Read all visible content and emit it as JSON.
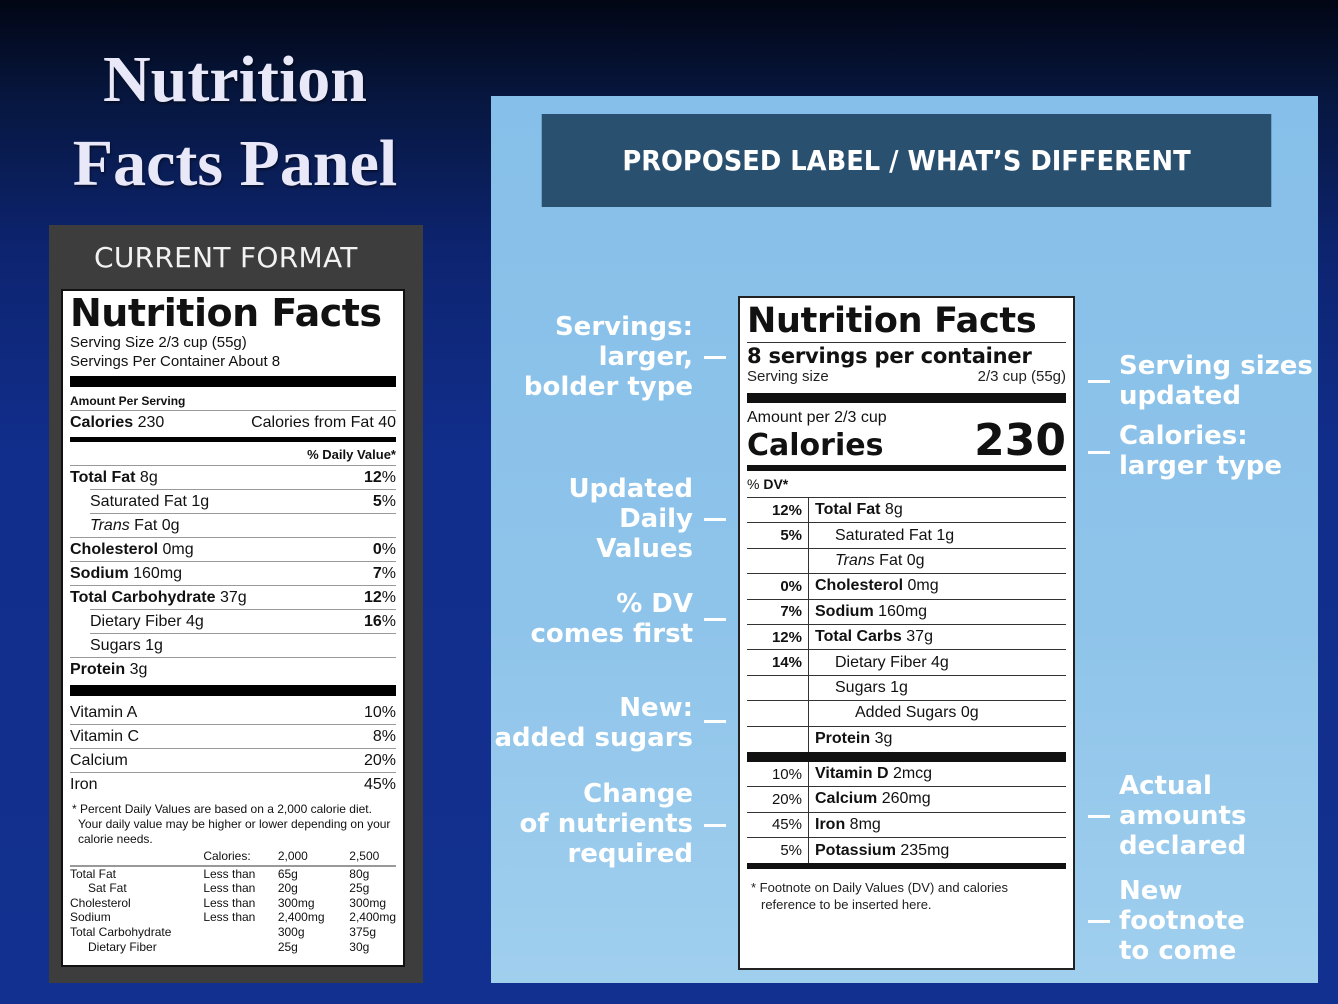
{
  "slide": {
    "title_line1": "Nutrition",
    "title_line2": "Facts Panel",
    "background_color": "#12308f"
  },
  "current": {
    "heading": "CURRENT FORMAT",
    "label": {
      "title": "Nutrition Facts",
      "serving_size": "Serving Size 2/3 cup (55g)",
      "servings_per_container": "Servings Per Container About 8",
      "amount_per_serving": "Amount Per Serving",
      "calories_label": "Calories",
      "calories_value": "230",
      "calories_from_fat": "Calories from Fat 40",
      "daily_value_header": "% Daily Value*",
      "nutrients": [
        {
          "name": "Total Fat",
          "amount": "8g",
          "pct": "12",
          "bold": true,
          "indent": 0
        },
        {
          "name": "Saturated Fat",
          "amount": "1g",
          "pct": "5",
          "bold": false,
          "indent": 1
        },
        {
          "name": "Trans",
          "name_suffix": "Fat",
          "amount": "0g",
          "pct": "",
          "bold": false,
          "indent": 1,
          "italic_prefix": true
        },
        {
          "name": "Cholesterol",
          "amount": "0mg",
          "pct": "0",
          "bold": true,
          "indent": 0
        },
        {
          "name": "Sodium",
          "amount": "160mg",
          "pct": "7",
          "bold": true,
          "indent": 0
        },
        {
          "name": "Total Carbohydrate",
          "amount": "37g",
          "pct": "12",
          "bold": true,
          "indent": 0
        },
        {
          "name": "Dietary Fiber",
          "amount": "4g",
          "pct": "16",
          "bold": false,
          "indent": 1
        },
        {
          "name": "Sugars",
          "amount": "1g",
          "pct": "",
          "bold": false,
          "indent": 1
        },
        {
          "name": "Protein",
          "amount": "3g",
          "pct": "",
          "bold": true,
          "indent": 0
        }
      ],
      "vitamins": [
        {
          "name": "Vitamin A",
          "pct": "10%"
        },
        {
          "name": "Vitamin C",
          "pct": "8%"
        },
        {
          "name": "Calcium",
          "pct": "20%"
        },
        {
          "name": "Iron",
          "pct": "45%"
        }
      ],
      "footnote": "* Percent Daily Values are based on a 2,000 calorie diet. Your daily value may be higher or lower depending on your calorie needs.",
      "dv_table": {
        "headers": [
          "",
          "Calories:",
          "2,000",
          "2,500"
        ],
        "rows": [
          [
            "Total Fat",
            "Less than",
            "65g",
            "80g"
          ],
          [
            "Sat Fat",
            "Less than",
            "20g",
            "25g"
          ],
          [
            "Cholesterol",
            "Less than",
            "300mg",
            "300mg"
          ],
          [
            "Sodium",
            "Less than",
            "2,400mg",
            "2,400mg"
          ],
          [
            "Total Carbohydrate",
            "",
            "300g",
            "375g"
          ],
          [
            "Dietary Fiber",
            "",
            "25g",
            "30g"
          ]
        ]
      }
    }
  },
  "proposed": {
    "heading": "PROPOSED LABEL / WHAT’S DIFFERENT",
    "label": {
      "title": "Nutrition Facts",
      "servings": "8 servings per container",
      "serving_size_label": "Serving size",
      "serving_size_value": "2/3 cup (55g)",
      "amount_per": "Amount per 2/3 cup",
      "calories_label": "Calories",
      "calories_value": "230",
      "pdv_prefix": "%",
      "pdv_bold": "DV*",
      "nutrients": [
        {
          "pct": "12%",
          "name": "Total Fat",
          "amount": "8g",
          "bold": true,
          "indent": 0
        },
        {
          "pct": "5%",
          "name": "Saturated Fat",
          "amount": "1g",
          "bold": false,
          "indent": 1
        },
        {
          "pct": "",
          "name": "Trans",
          "name_suffix": "Fat",
          "amount": "0g",
          "bold": false,
          "indent": 1
        },
        {
          "pct": "0%",
          "name": "Cholesterol",
          "amount": "0mg",
          "bold": true,
          "indent": 0
        },
        {
          "pct": "7%",
          "name": "Sodium",
          "amount": "160mg",
          "bold": true,
          "indent": 0
        },
        {
          "pct": "12%",
          "name": "Total Carbs",
          "amount": "37g",
          "bold": true,
          "indent": 0
        },
        {
          "pct": "14%",
          "name": "Dietary Fiber",
          "amount": "4g",
          "bold": false,
          "indent": 1
        },
        {
          "pct": "",
          "name": "Sugars",
          "amount": "1g",
          "bold": false,
          "indent": 1
        },
        {
          "pct": "",
          "name": "Added Sugars",
          "amount": "0g",
          "bold": false,
          "indent": 2
        },
        {
          "pct": "",
          "name": "Protein",
          "amount": "3g",
          "bold": true,
          "indent": 0
        }
      ],
      "minerals": [
        {
          "pct": "10%",
          "name": "Vitamin D",
          "amount": "2mcg"
        },
        {
          "pct": "20%",
          "name": "Calcium",
          "amount": "260mg"
        },
        {
          "pct": "45%",
          "name": "Iron",
          "amount": "8mg"
        },
        {
          "pct": "5%",
          "name": "Potassium",
          "amount": "235mg"
        }
      ],
      "footnote": "* Footnote on Daily Values (DV) and calories reference to be inserted here."
    },
    "callouts_left": [
      {
        "lines": [
          "Servings:",
          "larger,",
          "bolder type"
        ]
      },
      {
        "lines": [
          "Updated",
          "Daily",
          "Values"
        ]
      },
      {
        "lines": [
          "% DV",
          "comes first"
        ]
      },
      {
        "lines": [
          "New:",
          "added sugars"
        ]
      },
      {
        "lines": [
          "Change",
          "of nutrients",
          "required"
        ]
      }
    ],
    "callouts_right": [
      {
        "lines": [
          "Serving sizes",
          "updated"
        ]
      },
      {
        "lines": [
          "Calories:",
          "larger type"
        ]
      },
      {
        "lines": [
          "Actual",
          "amounts",
          "declared"
        ]
      },
      {
        "lines": [
          "New",
          "footnote",
          "to come"
        ]
      }
    ],
    "colors": {
      "panel": "#8fc4ea",
      "header": "#2a5070"
    }
  }
}
